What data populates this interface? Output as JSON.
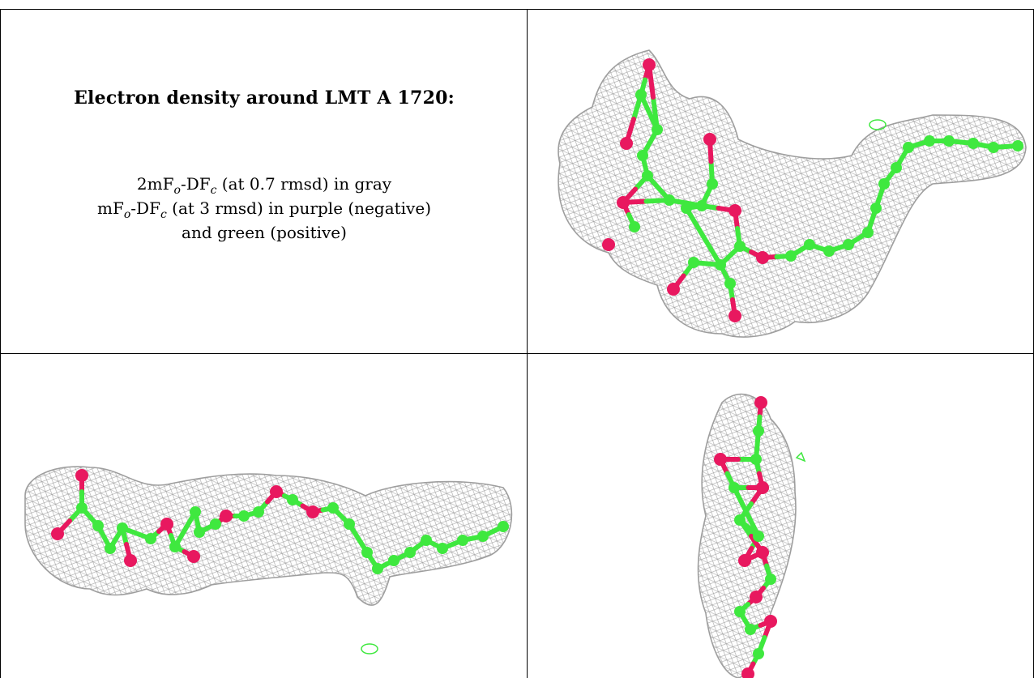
{
  "caption": {
    "title": "Electron density around LMT A 1720:",
    "line1": {
      "a": "2mF",
      "o": "o",
      "b": "-DF",
      "c": "c",
      "rest": " (at 0.7 rmsd) in gray"
    },
    "line2": {
      "a": "mF",
      "o": "o",
      "b": "-DF",
      "c": "c",
      "rest": " (at 3 rmsd) in purple (negative)"
    },
    "line3": "and green (positive)"
  },
  "colors": {
    "mesh": "#8e8e8e",
    "carbon": "#3fe83f",
    "oxygen": "#e8185f",
    "grid": "#000000"
  },
  "panels": [
    {
      "name": "view-top-right",
      "description_icon": "molecule-density-view-1"
    },
    {
      "name": "view-bottom-left",
      "description_icon": "molecule-density-view-2"
    },
    {
      "name": "view-bottom-right",
      "description_icon": "molecule-density-view-3"
    }
  ]
}
